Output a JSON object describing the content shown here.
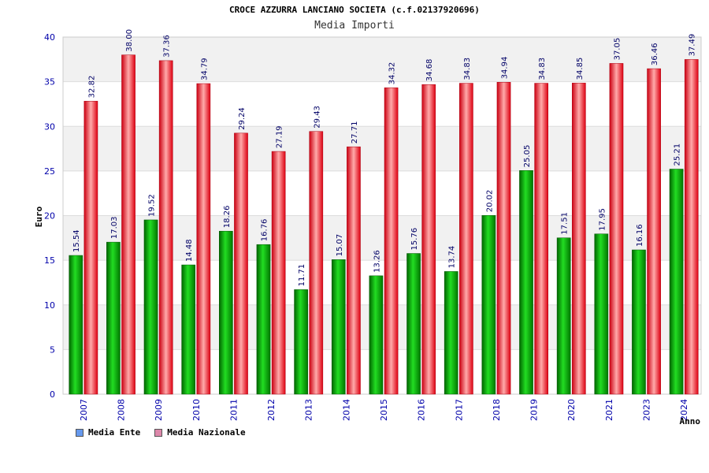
{
  "chart_data": {
    "type": "bar",
    "title": "CROCE AZZURRA LANCIANO SOCIETA (c.f.02137920696)",
    "subtitle": "Media Importi",
    "xlabel": "Anno",
    "ylabel": "Euro",
    "ylim": [
      0,
      40
    ],
    "yticks": [
      "0",
      "5",
      "10",
      "15",
      "20",
      "25",
      "30",
      "35",
      "40"
    ],
    "grid": true,
    "legend_placement": "bottom-left",
    "categories": [
      "2007",
      "2008",
      "2009",
      "2010",
      "2011",
      "2012",
      "2013",
      "2014",
      "2015",
      "2016",
      "2017",
      "2018",
      "2019",
      "2020",
      "2021",
      "2023",
      "2024"
    ],
    "series": [
      {
        "name": "Media Ente",
        "color": "#00aa00",
        "legend_color": "#6699ee",
        "values": [
          15.54,
          17.03,
          19.52,
          14.48,
          18.26,
          16.76,
          11.71,
          15.07,
          13.26,
          15.76,
          13.74,
          20.02,
          25.05,
          17.51,
          17.95,
          16.16,
          25.21
        ],
        "labels": [
          "15.54",
          "17.03",
          "19.52",
          "14.48",
          "18.26",
          "16.76",
          "11.71",
          "15.07",
          "13.26",
          "15.76",
          "13.74",
          "20.02",
          "25.05",
          "17.51",
          "17.95",
          "16.16",
          "25.21"
        ]
      },
      {
        "name": "Media Nazionale",
        "color": "#ee1122",
        "legend_color": "#dd88aa",
        "values": [
          32.82,
          38.0,
          37.36,
          34.79,
          29.24,
          27.19,
          29.43,
          27.71,
          34.32,
          34.68,
          34.83,
          34.94,
          34.83,
          34.85,
          37.05,
          36.46,
          37.49
        ],
        "labels": [
          "32.82",
          "38.00",
          "37.36",
          "34.79",
          "29.24",
          "27.19",
          "29.43",
          "27.71",
          "34.32",
          "34.68",
          "34.83",
          "34.94",
          "34.83",
          "34.85",
          "37.05",
          "36.46",
          "37.49"
        ]
      }
    ]
  }
}
